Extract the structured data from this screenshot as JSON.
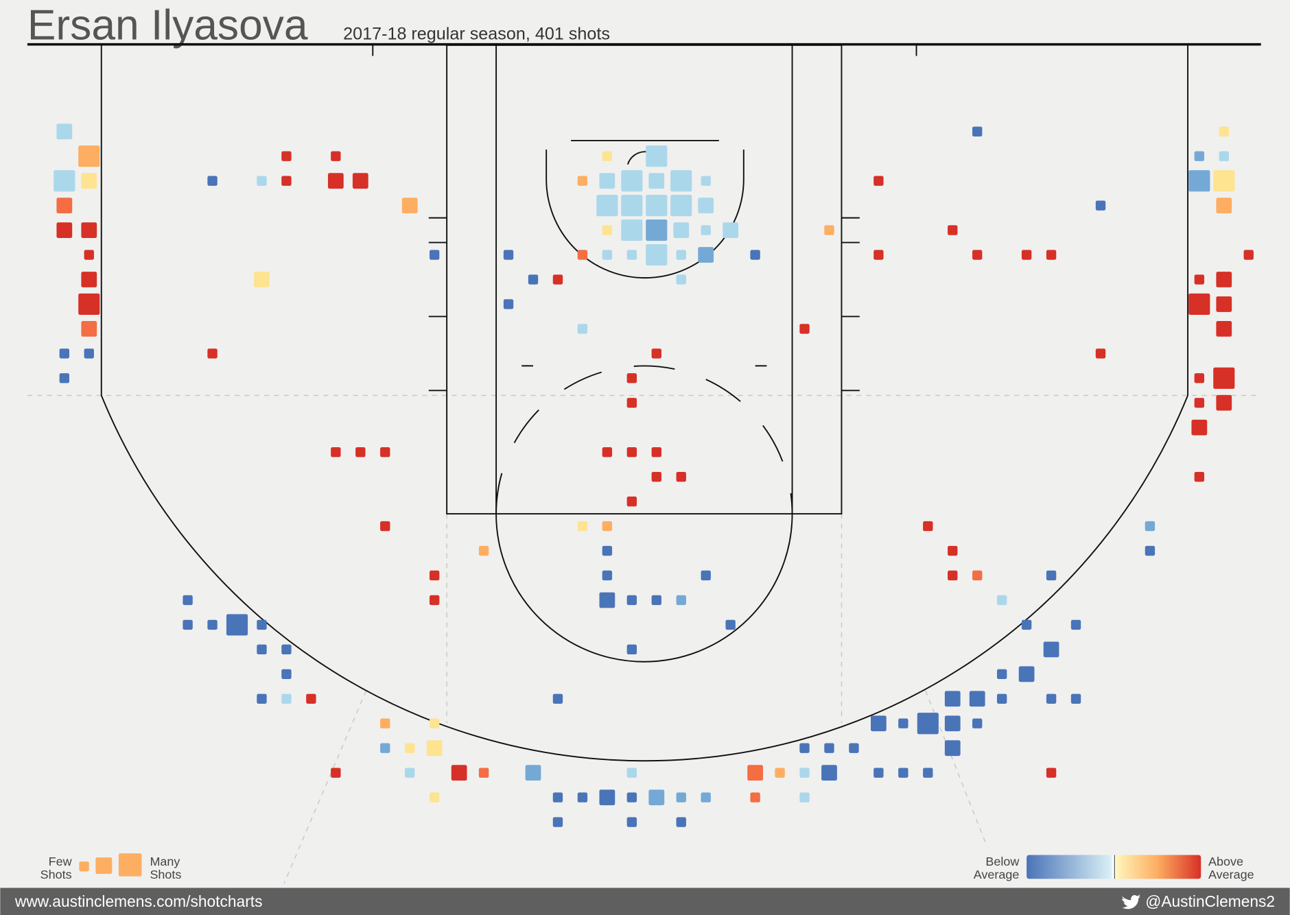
{
  "chart_data": {
    "type": "shotchart",
    "title": "Ersan Ilyasova",
    "subtitle": "2017-18 regular season, 401 shots",
    "legend": {
      "few": [
        "Few",
        "Shots"
      ],
      "many": [
        "Many",
        "Shots"
      ],
      "below": [
        "Below",
        "Average"
      ],
      "above": [
        "Above",
        "Average"
      ]
    },
    "footer": {
      "site": "www.austinclemens.com/shotcharts",
      "handle": "@AustinClemens2"
    },
    "series": [
      {
        "color": "#abd7eb",
        "x": [
          0,
          24,
          47,
          0,
          8,
          22,
          23,
          24,
          25,
          26,
          22,
          23,
          24,
          25,
          26,
          23,
          25,
          26,
          27,
          22,
          23,
          24,
          25,
          25,
          21,
          38,
          9,
          14,
          23,
          30,
          30
        ],
        "y": [
          0,
          1,
          1,
          2,
          2,
          2,
          2,
          2,
          2,
          2,
          3,
          3,
          3,
          3,
          3,
          4,
          4,
          4,
          4,
          5,
          5,
          5,
          5,
          6,
          8,
          19,
          23,
          26,
          26,
          26,
          27
        ],
        "size": [
          2,
          3,
          1,
          3,
          1,
          2,
          3,
          2,
          3,
          1,
          3,
          3,
          3,
          3,
          2,
          3,
          2,
          1,
          2,
          1,
          1,
          3,
          1,
          1,
          1,
          1,
          1,
          1,
          1,
          1,
          1
        ]
      },
      {
        "color": "#74a9d6",
        "x": [
          46,
          46,
          24,
          26,
          44,
          25,
          13,
          19,
          24,
          25,
          26
        ],
        "y": [
          1,
          2,
          4,
          5,
          16,
          19,
          25,
          26,
          27,
          27,
          27
        ],
        "size": [
          1,
          3,
          3,
          2,
          1,
          1,
          1,
          2,
          2,
          1,
          1
        ]
      },
      {
        "color": "#4a74b8",
        "x": [
          37,
          6,
          42,
          15,
          18,
          28,
          19,
          18,
          0,
          1,
          0,
          22,
          44,
          22,
          26,
          40,
          5,
          22,
          23,
          24,
          5,
          6,
          7,
          8,
          27,
          39,
          41,
          8,
          9,
          23,
          40,
          9,
          38,
          39,
          8,
          20,
          36,
          37,
          38,
          40,
          41,
          33,
          34,
          35,
          36,
          37,
          30,
          31,
          32,
          36,
          31,
          33,
          34,
          35,
          20,
          21,
          22,
          23,
          20,
          23,
          25
        ],
        "y": [
          0,
          2,
          3,
          5,
          5,
          5,
          6,
          7,
          9,
          9,
          10,
          17,
          17,
          18,
          18,
          18,
          19,
          19,
          19,
          19,
          20,
          20,
          20,
          20,
          20,
          20,
          20,
          21,
          21,
          21,
          21,
          22,
          22,
          22,
          23,
          23,
          23,
          23,
          23,
          23,
          23,
          24,
          24,
          24,
          24,
          24,
          25,
          25,
          25,
          25,
          26,
          26,
          26,
          26,
          27,
          27,
          27,
          27,
          28,
          28,
          28
        ],
        "size": [
          1,
          1,
          1,
          1,
          1,
          1,
          1,
          1,
          1,
          1,
          1,
          1,
          1,
          1,
          1,
          1,
          1,
          2,
          1,
          1,
          1,
          1,
          3,
          1,
          1,
          1,
          1,
          1,
          1,
          1,
          2,
          1,
          1,
          2,
          1,
          1,
          2,
          2,
          1,
          1,
          1,
          2,
          1,
          3,
          2,
          1,
          1,
          1,
          1,
          2,
          2,
          1,
          1,
          1,
          1,
          1,
          2,
          1,
          1,
          1,
          1
        ]
      },
      {
        "color": "#fee391",
        "x": [
          47,
          22,
          1,
          47,
          8,
          22,
          21,
          15,
          14,
          15,
          15
        ],
        "y": [
          0,
          1,
          2,
          2,
          6,
          4,
          16,
          24,
          25,
          25,
          27
        ],
        "size": [
          1,
          1,
          2,
          3,
          2,
          1,
          1,
          1,
          1,
          2,
          1
        ]
      },
      {
        "color": "#fdae61",
        "x": [
          1,
          14,
          47,
          21,
          31,
          22,
          17,
          13,
          29
        ],
        "y": [
          1,
          3,
          3,
          2,
          4,
          16,
          17,
          24,
          26
        ],
        "size": [
          3,
          2,
          2,
          1,
          1,
          1,
          1,
          1,
          1
        ]
      },
      {
        "color": "#f46d43",
        "x": [
          0,
          21,
          1,
          37,
          17,
          28,
          28
        ],
        "y": [
          3,
          5,
          8,
          18,
          26,
          26,
          27
        ],
        "size": [
          2,
          1,
          2,
          1,
          1,
          2,
          1
        ]
      },
      {
        "color": "#d73027",
        "x": [
          9,
          11,
          9,
          11,
          12,
          33,
          0,
          1,
          36,
          1,
          33,
          37,
          39,
          40,
          48,
          1,
          20,
          46,
          47,
          1,
          46,
          47,
          30,
          47,
          6,
          24,
          42,
          23,
          46,
          47,
          23,
          46,
          47,
          46,
          11,
          12,
          13,
          22,
          23,
          24,
          24,
          25,
          46,
          23,
          13,
          35,
          36,
          15,
          36,
          15,
          10,
          11,
          16,
          40
        ],
        "y": [
          1,
          1,
          2,
          2,
          2,
          2,
          4,
          4,
          4,
          5,
          5,
          5,
          5,
          5,
          5,
          6,
          6,
          6,
          6,
          7,
          7,
          7,
          8,
          8,
          9,
          9,
          9,
          10,
          10,
          10,
          11,
          11,
          11,
          12,
          13,
          13,
          13,
          13,
          13,
          13,
          14,
          14,
          14,
          15,
          16,
          16,
          17,
          18,
          18,
          19,
          23,
          26,
          26,
          26
        ],
        "size": [
          1,
          1,
          1,
          2,
          2,
          1,
          2,
          2,
          1,
          1,
          1,
          1,
          1,
          1,
          1,
          2,
          1,
          1,
          2,
          3,
          3,
          2,
          1,
          2,
          1,
          1,
          1,
          1,
          1,
          3,
          1,
          1,
          2,
          2,
          1,
          1,
          1,
          1,
          1,
          1,
          1,
          1,
          1,
          1,
          1,
          1,
          1,
          1,
          1,
          1,
          1,
          1,
          2,
          1
        ]
      }
    ]
  }
}
